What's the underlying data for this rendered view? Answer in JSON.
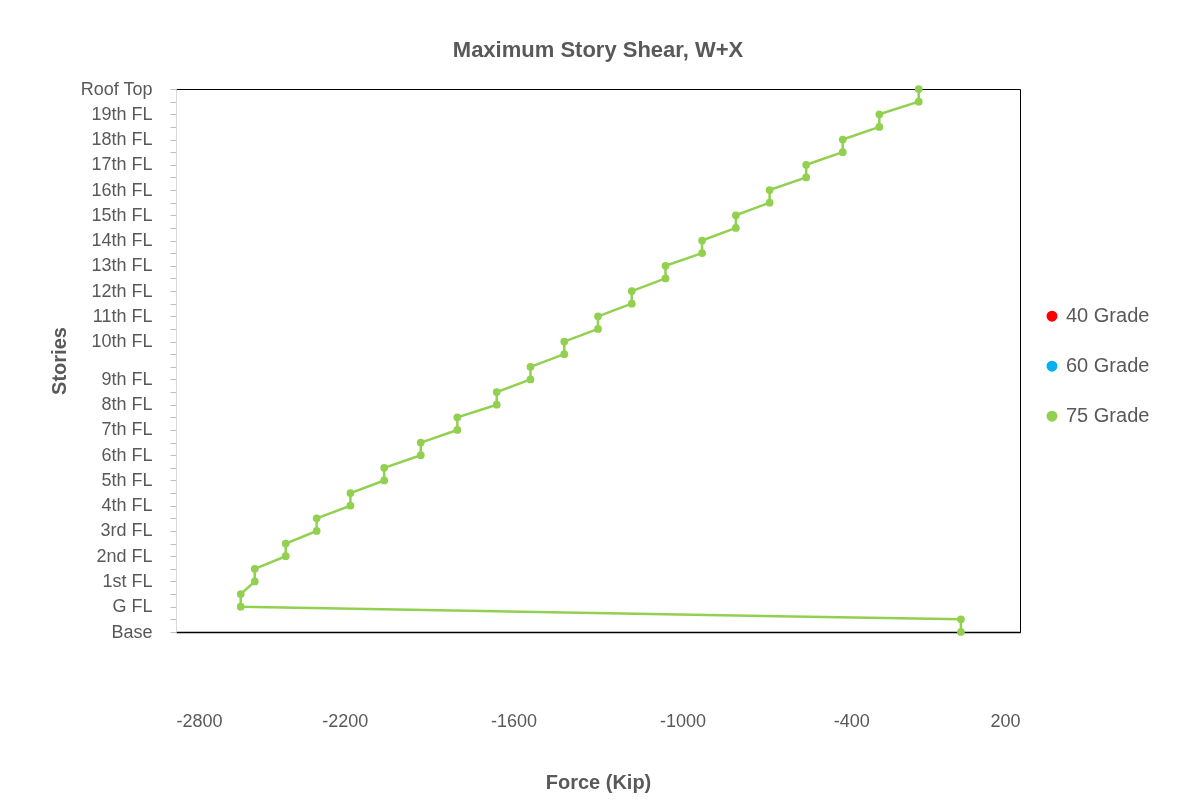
{
  "chart_data": {
    "type": "line",
    "orientation": "horizontal",
    "title": "Maximum Story Shear, W+X",
    "xlabel": "Force (Kip)",
    "ylabel": "Stories",
    "categories": [
      "Roof Top",
      null,
      "19th FL",
      null,
      "18th FL",
      null,
      "17th FL",
      null,
      "16th FL",
      null,
      "15th FL",
      null,
      "14th FL",
      null,
      "13th FL",
      null,
      "12th FL",
      null,
      "11th FL",
      null,
      "10th FL",
      null,
      null,
      "9th FL",
      null,
      "8th FL",
      null,
      "7th FL",
      null,
      "6th FL",
      null,
      "5th FL",
      null,
      "4th FL",
      null,
      "3rd FL",
      null,
      "2nd FL",
      null,
      "1st FL",
      null,
      "G FL",
      null,
      "Base"
    ],
    "series": [
      {
        "name": "40 Grade",
        "color": "#ff0000",
        "values": [
          null,
          null,
          null,
          null,
          null,
          null,
          null,
          null,
          null,
          null,
          null,
          null,
          null,
          null,
          null,
          null,
          null,
          null,
          null,
          null,
          null,
          null,
          null,
          null,
          null,
          null,
          null,
          null,
          null,
          null,
          null,
          null,
          null,
          null,
          null,
          null,
          null,
          null,
          null,
          null,
          null,
          null,
          null,
          null
        ]
      },
      {
        "name": "60 Grade",
        "color": "#00b0f0",
        "values": [
          null,
          null,
          null,
          null,
          null,
          null,
          null,
          null,
          null,
          null,
          null,
          null,
          null,
          null,
          null,
          null,
          null,
          null,
          null,
          null,
          null,
          null,
          null,
          null,
          null,
          null,
          null,
          null,
          null,
          null,
          null,
          null,
          null,
          null,
          null,
          null,
          null,
          null,
          null,
          null,
          null,
          null,
          null,
          null
        ]
      },
      {
        "name": "75 Grade",
        "color": "#92d050",
        "values": [
          -160,
          -160,
          -300,
          -300,
          -430,
          -430,
          -560,
          -560,
          -690,
          -690,
          -810,
          -810,
          -930,
          -930,
          -1060,
          -1060,
          -1180,
          -1180,
          -1300,
          -1300,
          -1420,
          -1420,
          -1540,
          -1540,
          -1660,
          -1660,
          -1800,
          -1800,
          -1930,
          -1930,
          -2060,
          -2060,
          -2180,
          -2180,
          -2300,
          -2300,
          -2410,
          -2410,
          -2520,
          -2520,
          -2570,
          -2570,
          -10,
          -10
        ]
      }
    ],
    "xlim": [
      -2800,
      200
    ],
    "xticks": [
      -2800,
      -2200,
      -1600,
      -1000,
      -400,
      200
    ],
    "legend": "right",
    "marker": "circle",
    "line_style": "solid",
    "grid": false
  }
}
